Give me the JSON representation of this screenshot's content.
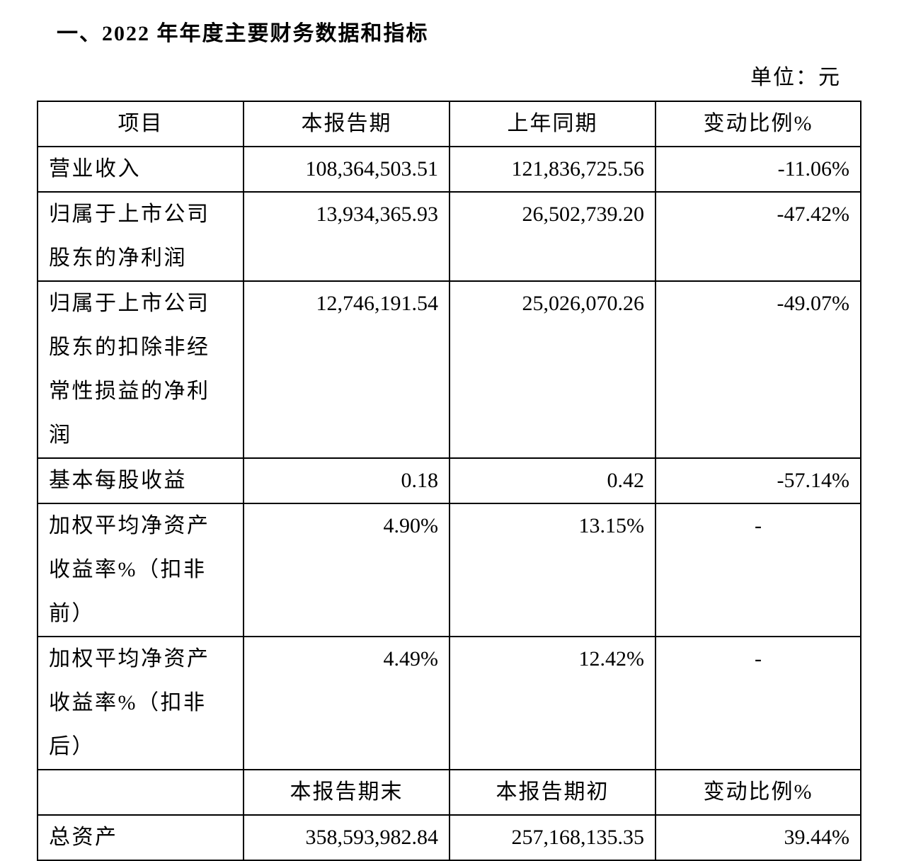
{
  "title": "一、2022 年年度主要财务数据和指标",
  "unit": "单位：元",
  "table": {
    "header": {
      "item": "项目",
      "current": "本报告期",
      "previous": "上年同期",
      "change": "变动比例%"
    },
    "rows": [
      {
        "item": "营业收入",
        "current": "108,364,503.51",
        "previous": "121,836,725.56",
        "change": "-11.06%"
      },
      {
        "item": "归属于上市公司股东的净利润",
        "current": "13,934,365.93",
        "previous": "26,502,739.20",
        "change": "-47.42%"
      },
      {
        "item": "归属于上市公司股东的扣除非经常性损益的净利润",
        "current": "12,746,191.54",
        "previous": "25,026,070.26",
        "change": "-49.07%"
      },
      {
        "item": "基本每股收益",
        "current": "0.18",
        "previous": "0.42",
        "change": "-57.14%"
      },
      {
        "item": "加权平均净资产收益率%（扣非前）",
        "current": "4.90%",
        "previous": "13.15%",
        "change": "-"
      },
      {
        "item": "加权平均净资产收益率%（扣非后）",
        "current": "4.49%",
        "previous": "12.42%",
        "change": "-"
      }
    ],
    "balance_header": {
      "current": "本报告期末",
      "previous": "本报告期初",
      "change": "变动比例%"
    },
    "balance_rows": [
      {
        "item": "总资产",
        "current": "358,593,982.84",
        "previous": "257,168,135.35",
        "change": "39.44%"
      }
    ]
  }
}
